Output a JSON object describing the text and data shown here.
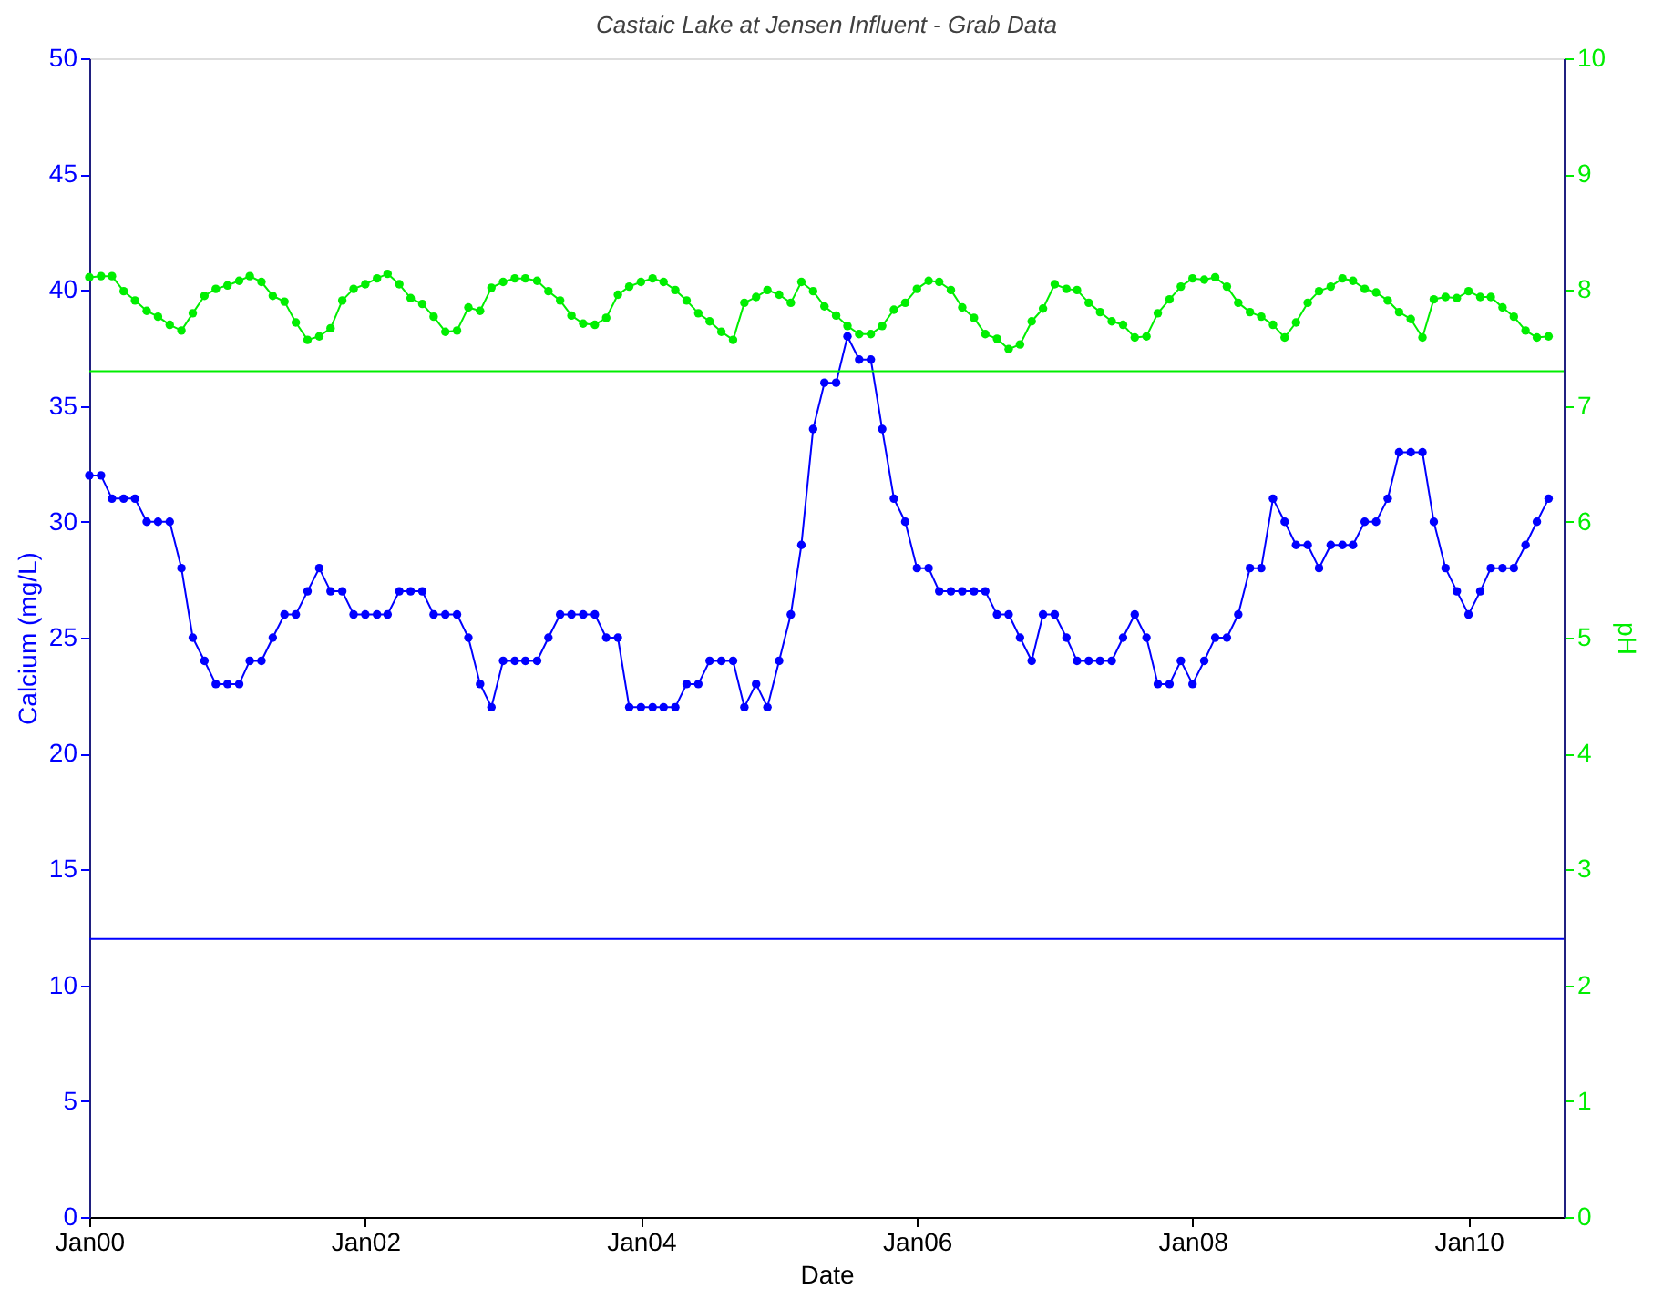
{
  "chart_data": {
    "type": "line",
    "title": "Castaic Lake at Jensen Influent - Grab Data",
    "xlabel": "Date",
    "ylabel": "Calcium (mg/L)",
    "y2label": "pH",
    "x": [
      "2000-01",
      "2000-02",
      "2000-03",
      "2000-04",
      "2000-05",
      "2000-06",
      "2000-07",
      "2000-08",
      "2000-09",
      "2000-10",
      "2000-11",
      "2000-12",
      "2001-01",
      "2001-02",
      "2001-03",
      "2001-04",
      "2001-05",
      "2001-06",
      "2001-07",
      "2001-08",
      "2001-09",
      "2001-10",
      "2001-11",
      "2001-12",
      "2002-01",
      "2002-02",
      "2002-03",
      "2002-04",
      "2002-05",
      "2002-06",
      "2002-07",
      "2002-08",
      "2002-09",
      "2002-10",
      "2002-11",
      "2002-12",
      "2003-01",
      "2003-02",
      "2003-03",
      "2003-04",
      "2003-05",
      "2003-06",
      "2003-07",
      "2003-08",
      "2003-09",
      "2003-10",
      "2003-11",
      "2003-12",
      "2004-01",
      "2004-02",
      "2004-03",
      "2004-04",
      "2004-05",
      "2004-06",
      "2004-07",
      "2004-08",
      "2004-09",
      "2004-10",
      "2004-11",
      "2004-12",
      "2005-01",
      "2005-02",
      "2005-03",
      "2005-04",
      "2005-05",
      "2005-06",
      "2005-07",
      "2005-08",
      "2005-09",
      "2005-10",
      "2005-11",
      "2005-12",
      "2006-01",
      "2006-02",
      "2006-03",
      "2006-04",
      "2006-05",
      "2006-06",
      "2006-07",
      "2006-08",
      "2006-09",
      "2006-10",
      "2006-11",
      "2006-12",
      "2007-01",
      "2007-02",
      "2007-03",
      "2007-04",
      "2007-05",
      "2007-06",
      "2007-07",
      "2007-08",
      "2007-09",
      "2007-10",
      "2007-11",
      "2007-12",
      "2008-01",
      "2008-02",
      "2008-03",
      "2008-04",
      "2008-05",
      "2008-06",
      "2008-07",
      "2008-08",
      "2008-09",
      "2008-10",
      "2008-11",
      "2008-12",
      "2009-01",
      "2009-02",
      "2009-03",
      "2009-04",
      "2009-05",
      "2009-06",
      "2009-07",
      "2009-08",
      "2009-09",
      "2009-10",
      "2009-11",
      "2009-12",
      "2010-01",
      "2010-02",
      "2010-03",
      "2010-04",
      "2010-05",
      "2010-06",
      "2010-07",
      "2010-08"
    ],
    "series": [
      {
        "name": null,
        "color": "#0000ff",
        "axis": "y",
        "values": [
          32,
          32,
          31,
          31,
          31,
          30,
          30,
          30,
          28,
          25,
          24,
          23,
          23,
          23,
          24,
          24,
          25,
          26,
          26,
          27,
          28,
          27,
          27,
          26,
          26,
          26,
          26,
          27,
          27,
          27,
          26,
          26,
          26,
          25,
          23,
          22,
          24,
          24,
          24,
          24,
          25,
          26,
          26,
          26,
          26,
          25,
          25,
          22,
          22,
          22,
          22,
          22,
          23,
          23,
          24,
          24,
          24,
          22,
          23,
          22,
          24,
          26,
          29,
          34,
          36,
          36,
          38,
          37,
          37,
          34,
          31,
          30,
          28,
          28,
          27,
          27,
          27,
          27,
          27,
          26,
          26,
          25,
          24,
          26,
          26,
          25,
          24,
          24,
          24,
          24,
          25,
          26,
          25,
          23,
          23,
          24,
          23,
          24,
          25,
          25,
          26,
          28,
          28,
          31,
          30,
          29,
          29,
          28,
          29,
          29,
          29,
          30,
          30,
          31,
          33,
          33,
          33,
          30,
          28,
          27,
          26,
          27,
          28,
          28,
          28,
          29,
          30,
          31
        ]
      },
      {
        "name": null,
        "color": "#00ee00",
        "axis": "y2",
        "values": [
          8.11,
          8.12,
          8.12,
          7.99,
          7.91,
          7.82,
          7.77,
          7.7,
          7.65,
          7.8,
          7.95,
          8.01,
          8.04,
          8.08,
          8.12,
          8.07,
          7.95,
          7.9,
          7.72,
          7.57,
          7.6,
          7.67,
          7.91,
          8.01,
          8.05,
          8.1,
          8.14,
          8.05,
          7.93,
          7.88,
          7.77,
          7.64,
          7.65,
          7.85,
          7.82,
          8.02,
          8.07,
          8.1,
          8.1,
          8.08,
          7.99,
          7.91,
          7.78,
          7.71,
          7.7,
          7.76,
          7.96,
          8.03,
          8.07,
          8.1,
          8.07,
          8.0,
          7.91,
          7.8,
          7.73,
          7.64,
          7.57,
          7.89,
          7.94,
          8.0,
          7.96,
          7.89,
          8.07,
          7.99,
          7.86,
          7.78,
          7.69,
          7.62,
          7.62,
          7.69,
          7.83,
          7.89,
          8.01,
          8.08,
          8.07,
          8.0,
          7.85,
          7.76,
          7.62,
          7.58,
          7.49,
          7.53,
          7.73,
          7.84,
          8.05,
          8.01,
          8.0,
          7.89,
          7.81,
          7.73,
          7.7,
          7.59,
          7.6,
          7.8,
          7.92,
          8.03,
          8.1,
          8.09,
          8.11,
          8.03,
          7.89,
          7.81,
          7.77,
          7.7,
          7.59,
          7.72,
          7.89,
          7.99,
          8.03,
          8.1,
          8.08,
          8.01,
          7.98,
          7.91,
          7.81,
          7.75,
          7.59,
          7.92,
          7.94,
          7.93,
          7.99,
          7.94,
          7.94,
          7.85,
          7.77,
          7.65,
          7.59,
          7.6
        ]
      }
    ],
    "xlim": [
      "2000-01-01",
      "2010-09-10"
    ],
    "xticks": [
      {
        "value": "2000-01",
        "label": "Jan00"
      },
      {
        "value": "2002-01",
        "label": "Jan02"
      },
      {
        "value": "2004-01",
        "label": "Jan04"
      },
      {
        "value": "2006-01",
        "label": "Jan06"
      },
      {
        "value": "2008-01",
        "label": "Jan08"
      },
      {
        "value": "2010-01",
        "label": "Jan10"
      }
    ],
    "ylim": [
      0,
      50
    ],
    "yticks": [
      0,
      5,
      10,
      15,
      20,
      25,
      30,
      35,
      40,
      45,
      50
    ],
    "y2lim": [
      0,
      10
    ],
    "y2ticks": [
      0,
      1,
      2,
      3,
      4,
      5,
      6,
      7,
      8,
      9,
      10
    ],
    "ref_lines": [
      {
        "axis": "y",
        "value": 12,
        "color": "#0000ff"
      },
      {
        "axis": "y2",
        "value": 7.3,
        "color": "#00ee00"
      }
    ],
    "marker": "circle",
    "line_style": "solid",
    "grid": false
  }
}
